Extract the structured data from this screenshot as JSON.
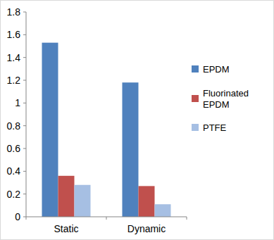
{
  "chart_data": {
    "type": "bar",
    "categories": [
      "Static",
      "Dynamic"
    ],
    "series": [
      {
        "name": "EPDM",
        "color": "#4f81bd",
        "values": [
          1.53,
          1.18
        ]
      },
      {
        "name": "Fluorinated EPDM",
        "color": "#c0504d",
        "values": [
          0.36,
          0.27
        ]
      },
      {
        "name": "PTFE",
        "color": "#a6bfe3",
        "values": [
          0.28,
          0.11
        ]
      }
    ],
    "ylim": [
      0,
      1.8
    ],
    "yticks": [
      0,
      0.2,
      0.4,
      0.6,
      0.8,
      1,
      1.2,
      1.4,
      1.6,
      1.8
    ],
    "grid": false,
    "legend": "right"
  }
}
